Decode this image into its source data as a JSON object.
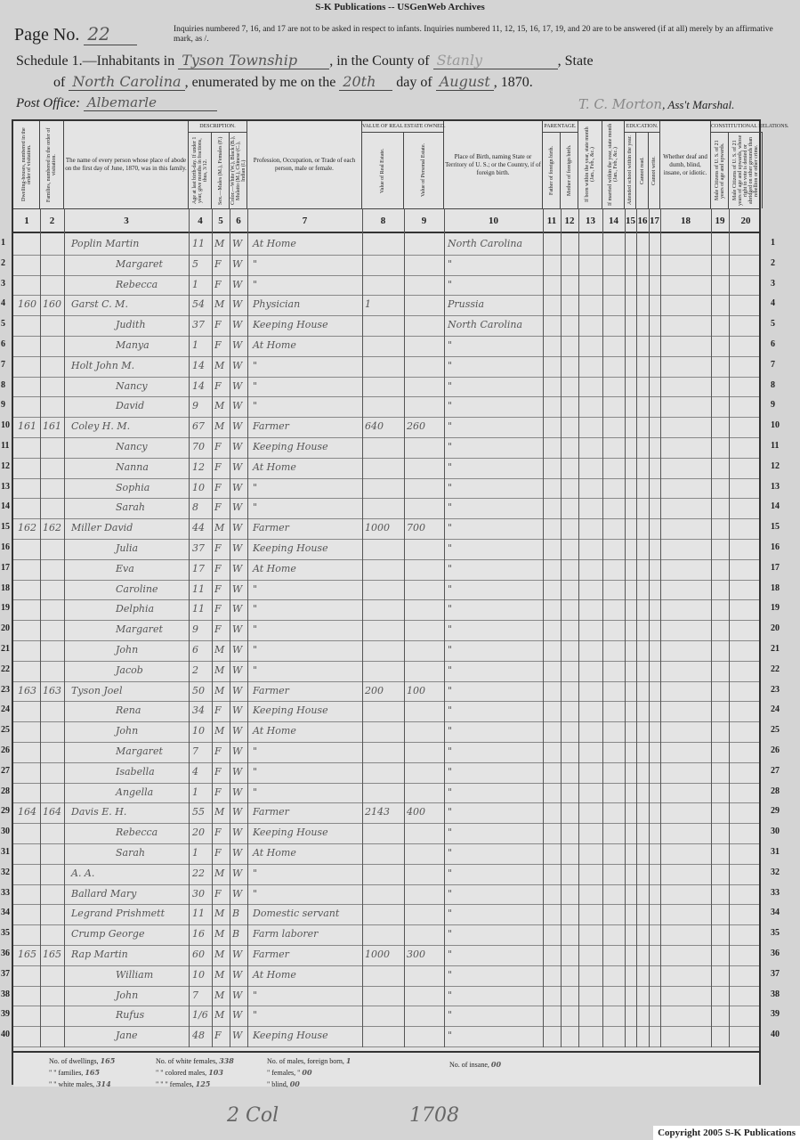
{
  "banner": "S-K Publications -- USGenWeb Archives",
  "page": {
    "label": "Page No.",
    "number": "22"
  },
  "instructions": "Inquiries numbered 7, 16, and 17 are not to be asked in respect to infants. Inquiries numbered 11, 12, 15, 16, 17, 19, and 20 are to be answered (if at all) merely by an affirmative mark, as /.",
  "schedule": {
    "prefix": "Schedule 1.—Inhabitants in",
    "township": "Tyson Township",
    "county_label": ", in the County of",
    "county": "Stanly",
    "state_label": ", State",
    "of_label": "of",
    "state": "North Carolina",
    "enum_label": ", enumerated by me on the",
    "day": "20th",
    "day_label": "day of",
    "month": "August",
    "year": ", 1870."
  },
  "post_office": {
    "label": "Post Office:",
    "value": "Albemarle"
  },
  "marshal": {
    "name": "T. C. Morton",
    "title": ", Ass't Marshal."
  },
  "headers": [
    {
      "num": "1",
      "text": "Dwelling-houses, numbered in the order of visitation."
    },
    {
      "num": "2",
      "text": "Families, numbered in the order of visitation."
    },
    {
      "num": "3",
      "text": "The name of every person whose place of abode on the first day of June, 1870, was in this family."
    },
    {
      "num": "4",
      "text": "Age at last birth-day. If under 1 year, give months in fractions, thus, 3/12."
    },
    {
      "num": "5",
      "text": "Sex.—Males (M.), Females (F.)"
    },
    {
      "num": "6",
      "text": "Color.—White (W.), Black (B.), Mulatto (M.), Chinese (C.), Indian (I.)"
    },
    {
      "num": "7",
      "text": "Profession, Occupation, or Trade of each person, male or female."
    },
    {
      "num": "8",
      "text": "Value of Real Estate."
    },
    {
      "num": "9",
      "text": "Value of Personal Estate."
    },
    {
      "num": "10",
      "text": "Place of Birth, naming State or Territory of U. S.; or the Country, if of foreign birth."
    },
    {
      "num": "11",
      "text": "Father of foreign birth."
    },
    {
      "num": "12",
      "text": "Mother of foreign birth."
    },
    {
      "num": "13",
      "text": "If born within the year, state month (Jan., Feb., &c.)"
    },
    {
      "num": "14",
      "text": "If married within the year, state month (Jan., Feb., &c.)"
    },
    {
      "num": "15",
      "text": "Attended school within the year."
    },
    {
      "num": "16",
      "text": "Cannot read."
    },
    {
      "num": "17",
      "text": "Cannot write."
    },
    {
      "num": "18",
      "text": "Whether deaf and dumb, blind, insane, or idiotic."
    },
    {
      "num": "19",
      "text": "Male Citizens of U. S. of 21 years of age and upwards."
    },
    {
      "num": "20",
      "text": "Male Citizens of U. S. of 21 years of age and upwards, whose right to vote is denied or abridged on other grounds than rebellion or other crime."
    }
  ],
  "group_headers": {
    "description": "Description.",
    "value": "Value of Real Estate owned.",
    "parentage": "Parentage.",
    "education": "Education.",
    "constitutional": "Constitutional Relations."
  },
  "rows": [
    [
      "",
      "",
      "Poplin Martin",
      "11",
      "M",
      "W",
      "At Home",
      "",
      "",
      "North Carolina"
    ],
    [
      "",
      "",
      "Margaret",
      "5",
      "F",
      "W",
      "\"",
      "",
      "",
      "\""
    ],
    [
      "",
      "",
      "Rebecca",
      "1",
      "F",
      "W",
      "\"",
      "",
      "",
      "\""
    ],
    [
      "160",
      "160",
      "Garst C. M.",
      "54",
      "M",
      "W",
      "Physician",
      "1",
      "",
      "Prussia"
    ],
    [
      "",
      "",
      "Judith",
      "37",
      "F",
      "W",
      "Keeping House",
      "",
      "",
      "North Carolina"
    ],
    [
      "",
      "",
      "Manya",
      "1",
      "F",
      "W",
      "At Home",
      "",
      "",
      "\""
    ],
    [
      "",
      "",
      "Holt John M.",
      "14",
      "M",
      "W",
      "\"",
      "",
      "",
      "\""
    ],
    [
      "",
      "",
      "Nancy",
      "14",
      "F",
      "W",
      "\"",
      "",
      "",
      "\""
    ],
    [
      "",
      "",
      "David",
      "9",
      "M",
      "W",
      "\"",
      "",
      "",
      "\""
    ],
    [
      "161",
      "161",
      "Coley H. M.",
      "67",
      "M",
      "W",
      "Farmer",
      "640",
      "260",
      "\""
    ],
    [
      "",
      "",
      "Nancy",
      "70",
      "F",
      "W",
      "Keeping House",
      "",
      "",
      "\""
    ],
    [
      "",
      "",
      "Nanna",
      "12",
      "F",
      "W",
      "At Home",
      "",
      "",
      "\""
    ],
    [
      "",
      "",
      "Sophia",
      "10",
      "F",
      "W",
      "\"",
      "",
      "",
      "\""
    ],
    [
      "",
      "",
      "Sarah",
      "8",
      "F",
      "W",
      "\"",
      "",
      "",
      "\""
    ],
    [
      "162",
      "162",
      "Miller David",
      "44",
      "M",
      "W",
      "Farmer",
      "1000",
      "700",
      "\""
    ],
    [
      "",
      "",
      "Julia",
      "37",
      "F",
      "W",
      "Keeping House",
      "",
      "",
      "\""
    ],
    [
      "",
      "",
      "Eva",
      "17",
      "F",
      "W",
      "At Home",
      "",
      "",
      "\""
    ],
    [
      "",
      "",
      "Caroline",
      "11",
      "F",
      "W",
      "\"",
      "",
      "",
      "\""
    ],
    [
      "",
      "",
      "Delphia",
      "11",
      "F",
      "W",
      "\"",
      "",
      "",
      "\""
    ],
    [
      "",
      "",
      "Margaret",
      "9",
      "F",
      "W",
      "\"",
      "",
      "",
      "\""
    ],
    [
      "",
      "",
      "John",
      "6",
      "M",
      "W",
      "\"",
      "",
      "",
      "\""
    ],
    [
      "",
      "",
      "Jacob",
      "2",
      "M",
      "W",
      "\"",
      "",
      "",
      "\""
    ],
    [
      "163",
      "163",
      "Tyson Joel",
      "50",
      "M",
      "W",
      "Farmer",
      "200",
      "100",
      "\""
    ],
    [
      "",
      "",
      "Rena",
      "34",
      "F",
      "W",
      "Keeping House",
      "",
      "",
      "\""
    ],
    [
      "",
      "",
      "John",
      "10",
      "M",
      "W",
      "At Home",
      "",
      "",
      "\""
    ],
    [
      "",
      "",
      "Margaret",
      "7",
      "F",
      "W",
      "\"",
      "",
      "",
      "\""
    ],
    [
      "",
      "",
      "Isabella",
      "4",
      "F",
      "W",
      "\"",
      "",
      "",
      "\""
    ],
    [
      "",
      "",
      "Angella",
      "1",
      "F",
      "W",
      "\"",
      "",
      "",
      "\""
    ],
    [
      "164",
      "164",
      "Davis E. H.",
      "55",
      "M",
      "W",
      "Farmer",
      "2143",
      "400",
      "\""
    ],
    [
      "",
      "",
      "Rebecca",
      "20",
      "F",
      "W",
      "Keeping House",
      "",
      "",
      "\""
    ],
    [
      "",
      "",
      "Sarah",
      "1",
      "F",
      "W",
      "At Home",
      "",
      "",
      "\""
    ],
    [
      "",
      "",
      "A. A.",
      "22",
      "M",
      "W",
      "\"",
      "",
      "",
      "\""
    ],
    [
      "",
      "",
      "Ballard Mary",
      "30",
      "F",
      "W",
      "\"",
      "",
      "",
      "\""
    ],
    [
      "",
      "",
      "Legrand Prishmett",
      "11",
      "M",
      "B",
      "Domestic servant",
      "",
      "",
      "\""
    ],
    [
      "",
      "",
      "Crump George",
      "16",
      "M",
      "B",
      "Farm laborer",
      "",
      "",
      "\""
    ],
    [
      "165",
      "165",
      "Rap Martin",
      "60",
      "M",
      "W",
      "Farmer",
      "1000",
      "300",
      "\""
    ],
    [
      "",
      "",
      "William",
      "10",
      "M",
      "W",
      "At Home",
      "",
      "",
      "\""
    ],
    [
      "",
      "",
      "John",
      "7",
      "M",
      "W",
      "\"",
      "",
      "",
      "\""
    ],
    [
      "",
      "",
      "Rufus",
      "1/6",
      "M",
      "W",
      "\"",
      "",
      "",
      "\""
    ],
    [
      "",
      "",
      "Jane",
      "48",
      "F",
      "W",
      "Keeping House",
      "",
      "",
      "\""
    ]
  ],
  "summary": {
    "dwellings_label": "No. of dwellings,",
    "dwellings": "165",
    "white_females_label": "No. of white females,",
    "white_females": "338",
    "males_foreign_label": "No. of males, foreign born,",
    "males_foreign": "1",
    "families_label": "\" \" families,",
    "families": "165",
    "colored_males_label": "\" \" colored males,",
    "colored_males": "103",
    "females_foreign_label": "\" females, \"",
    "females_foreign": "00",
    "white_males_label": "\" \" white males,",
    "white_males": "314",
    "colored_females_label": "\" \" \" females,",
    "colored_females": "125",
    "blind_label": "\" blind,",
    "blind": "00",
    "insane_label": "No. of insane,",
    "insane": "00"
  },
  "bottom_notes": {
    "left": "2 Col",
    "right": "1708"
  },
  "copyright": "Copyright 2005 S-K Publications"
}
